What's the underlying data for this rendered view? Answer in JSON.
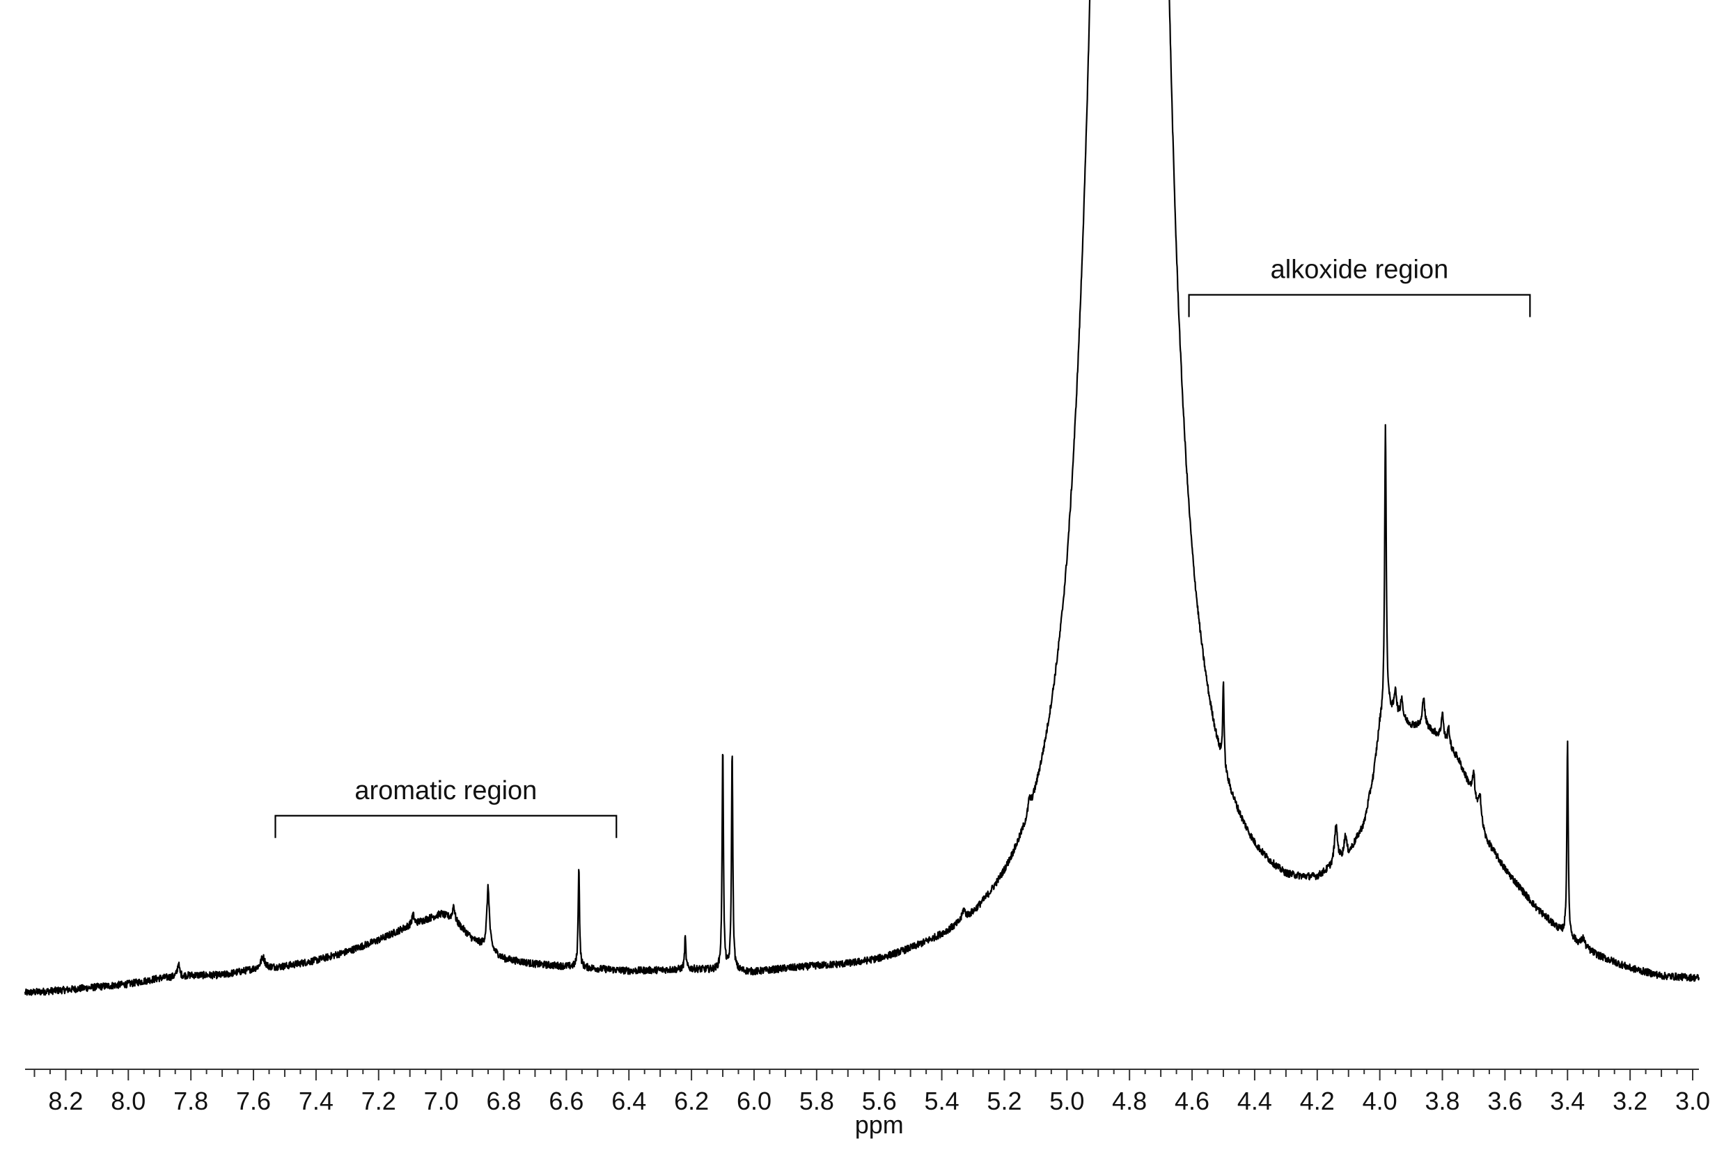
{
  "chart_data": {
    "type": "line",
    "title": "",
    "xlabel": "ppm",
    "ylabel": "",
    "x_reversed": true,
    "xlim": [
      8.33,
      2.98
    ],
    "ylim": [
      -5,
      100
    ],
    "grid": false,
    "legend": "none",
    "line_color": "#000000",
    "x_ticks": [
      {
        "value": 8.2,
        "label": "8.2"
      },
      {
        "value": 8.0,
        "label": "8.0"
      },
      {
        "value": 7.8,
        "label": "7.8"
      },
      {
        "value": 7.6,
        "label": "7.6"
      },
      {
        "value": 7.4,
        "label": "7.4"
      },
      {
        "value": 7.2,
        "label": "7.2"
      },
      {
        "value": 7.0,
        "label": "7.0"
      },
      {
        "value": 6.8,
        "label": "6.8"
      },
      {
        "value": 6.6,
        "label": "6.6"
      },
      {
        "value": 6.4,
        "label": "6.4"
      },
      {
        "value": 6.2,
        "label": "6.2"
      },
      {
        "value": 6.0,
        "label": "6.0"
      },
      {
        "value": 5.8,
        "label": "5.8"
      },
      {
        "value": 5.6,
        "label": "5.6"
      },
      {
        "value": 5.4,
        "label": "5.4"
      },
      {
        "value": 5.2,
        "label": "5.2"
      },
      {
        "value": 5.0,
        "label": "5.0"
      },
      {
        "value": 4.8,
        "label": "4.8"
      },
      {
        "value": 4.6,
        "label": "4.6"
      },
      {
        "value": 4.4,
        "label": "4.4"
      },
      {
        "value": 4.2,
        "label": "4.2"
      },
      {
        "value": 4.0,
        "label": "4.0"
      },
      {
        "value": 3.8,
        "label": "3.8"
      },
      {
        "value": 3.6,
        "label": "3.6"
      },
      {
        "value": 3.4,
        "label": "3.4"
      },
      {
        "value": 3.2,
        "label": "3.2"
      },
      {
        "value": 3.0,
        "label": "3.0"
      }
    ],
    "minor_tick_step": 0.05,
    "annotations": [
      {
        "label": "aromatic region",
        "x_start": 7.53,
        "x_end": 6.44,
        "y": 12.5
      },
      {
        "label": "alkoxide region",
        "x_start": 4.61,
        "x_end": 3.52,
        "y": 49
      }
    ],
    "baseline_points": [
      [
        8.33,
        0.0
      ],
      [
        8.2,
        0.2
      ],
      [
        8.0,
        0.6
      ],
      [
        7.9,
        1.0
      ],
      [
        7.8,
        1.2
      ],
      [
        7.7,
        1.2
      ],
      [
        7.6,
        1.6
      ],
      [
        7.5,
        1.8
      ],
      [
        7.4,
        2.2
      ],
      [
        7.3,
        2.8
      ],
      [
        7.2,
        3.6
      ],
      [
        7.1,
        4.6
      ],
      [
        7.0,
        5.4
      ],
      [
        6.96,
        5.0
      ],
      [
        6.9,
        3.6
      ],
      [
        6.8,
        2.2
      ],
      [
        6.7,
        1.8
      ],
      [
        6.6,
        1.6
      ],
      [
        6.5,
        1.4
      ],
      [
        6.4,
        1.2
      ],
      [
        6.3,
        1.2
      ],
      [
        6.2,
        1.2
      ],
      [
        6.1,
        1.0
      ],
      [
        6.0,
        0.8
      ],
      [
        5.9,
        0.9
      ],
      [
        5.8,
        0.9
      ],
      [
        5.7,
        0.8
      ],
      [
        5.6,
        0.8
      ],
      [
        5.5,
        1.0
      ],
      [
        5.4,
        1.2
      ],
      [
        5.3,
        1.4
      ],
      [
        5.2,
        1.9
      ],
      [
        5.1,
        2.5
      ],
      [
        5.0,
        3.8
      ],
      [
        4.95,
        6.0
      ],
      [
        4.7,
        8.0
      ],
      [
        4.65,
        5.6
      ],
      [
        4.6,
        4.5
      ],
      [
        4.5,
        4.0
      ],
      [
        4.4,
        3.8
      ],
      [
        4.3,
        4.1
      ],
      [
        4.2,
        5.2
      ],
      [
        4.1,
        7.5
      ],
      [
        4.05,
        10.0
      ],
      [
        4.02,
        13.5
      ],
      [
        4.0,
        17.0
      ],
      [
        3.98,
        18.4
      ],
      [
        3.95,
        18.0
      ],
      [
        3.9,
        17.5
      ],
      [
        3.85,
        17.5
      ],
      [
        3.8,
        16.8
      ],
      [
        3.75,
        15.5
      ],
      [
        3.7,
        13.0
      ],
      [
        3.66,
        10.0
      ],
      [
        3.6,
        8.0
      ],
      [
        3.5,
        5.4
      ],
      [
        3.42,
        3.8
      ],
      [
        3.35,
        2.8
      ],
      [
        3.3,
        2.2
      ],
      [
        3.2,
        1.4
      ],
      [
        3.1,
        0.9
      ],
      [
        2.98,
        0.8
      ]
    ],
    "peaks": [
      {
        "x": 7.84,
        "height": 0.9,
        "width": 0.004
      },
      {
        "x": 7.57,
        "height": 0.8,
        "width": 0.008
      },
      {
        "x": 7.09,
        "height": 0.7,
        "width": 0.004
      },
      {
        "x": 6.96,
        "height": 1.0,
        "width": 0.004
      },
      {
        "x": 6.85,
        "height": 4.3,
        "width": 0.005
      },
      {
        "x": 6.56,
        "height": 7.2,
        "width": 0.0025
      },
      {
        "x": 6.22,
        "height": 2.2,
        "width": 0.0025
      },
      {
        "x": 6.1,
        "height": 15.8,
        "width": 0.0025
      },
      {
        "x": 6.07,
        "height": 15.5,
        "width": 0.0025
      },
      {
        "x": 5.33,
        "height": 0.7,
        "width": 0.006
      },
      {
        "x": 5.12,
        "height": 0.8,
        "width": 0.004
      },
      {
        "x": 4.8,
        "height": 900.0,
        "width": 0.035
      },
      {
        "x": 4.5,
        "height": 6.0,
        "width": 0.0025
      },
      {
        "x": 4.14,
        "height": 2.6,
        "width": 0.006
      },
      {
        "x": 4.11,
        "height": 1.5,
        "width": 0.005
      },
      {
        "x": 3.982,
        "height": 20.0,
        "width": 0.003
      },
      {
        "x": 3.95,
        "height": 1.8,
        "width": 0.004
      },
      {
        "x": 3.93,
        "height": 1.5,
        "width": 0.004
      },
      {
        "x": 3.86,
        "height": 2.2,
        "width": 0.004
      },
      {
        "x": 3.8,
        "height": 1.8,
        "width": 0.004
      },
      {
        "x": 3.78,
        "height": 1.3,
        "width": 0.004
      },
      {
        "x": 3.7,
        "height": 1.6,
        "width": 0.004
      },
      {
        "x": 3.68,
        "height": 1.8,
        "width": 0.004
      },
      {
        "x": 3.4,
        "height": 13.8,
        "width": 0.0025
      },
      {
        "x": 3.35,
        "height": 0.6,
        "width": 0.006
      }
    ],
    "noise_amplitude": 0.25
  }
}
